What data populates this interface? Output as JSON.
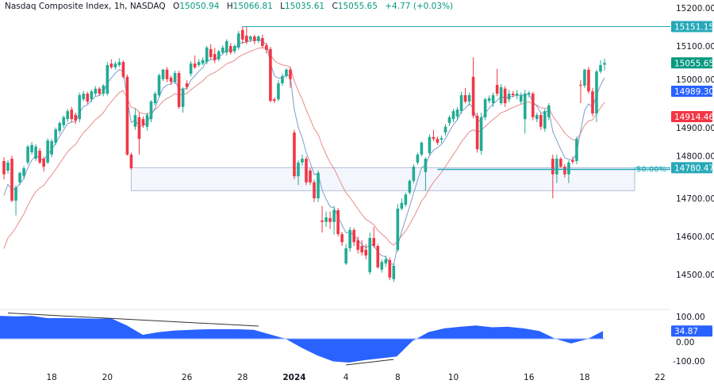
{
  "header": {
    "symbol": "Nasdaq Composite Index, 1h, NASDAQ",
    "open_label": "O",
    "open": "15050.94",
    "high_label": "H",
    "high": "15066.81",
    "low_label": "L",
    "low": "15035.61",
    "close_label": "C",
    "close": "15055.65",
    "change": "+4.77 (+0.03%)"
  },
  "colors": {
    "up": "#22ab94",
    "down": "#f23645",
    "fast_ma": "#7e9cc9",
    "slow_ma": "#e58c8c",
    "level": "#26a8b8",
    "oscillator": "#2962ff",
    "zone_fill": "#f3f6fd",
    "zone_border": "#b2bed4"
  },
  "chart_data": [
    {
      "type": "candlestick",
      "title": "Nasdaq Composite Index, 1h, NASDAQ",
      "ylim": [
        14450,
        15220
      ],
      "price_ticks": [
        "15200.00",
        "15100.00",
        "15000.00",
        "14900.00",
        "14800.00",
        "14700.00",
        "14600.00",
        "14500.00"
      ],
      "time_ticks": [
        {
          "label": "18",
          "bar": 12
        },
        {
          "label": "20",
          "bar": 26
        },
        {
          "label": "26",
          "bar": 46
        },
        {
          "label": "28",
          "bar": 60
        },
        {
          "label": "2024",
          "bar": 73,
          "bold": true
        },
        {
          "label": "4",
          "bar": 86
        },
        {
          "label": "8",
          "bar": 99
        },
        {
          "label": "10",
          "bar": 113
        },
        {
          "label": "16",
          "bar": 132
        },
        {
          "label": "18",
          "bar": 146
        },
        {
          "label": "22",
          "bar": 165
        }
      ],
      "ohlc": [
        [
          14798,
          14808,
          14750,
          14763
        ],
        [
          14773,
          14800,
          14765,
          14794
        ],
        [
          14804,
          14812,
          14690,
          14694
        ],
        [
          14694,
          14735,
          14655,
          14729
        ],
        [
          14742,
          14770,
          14735,
          14767
        ],
        [
          14759,
          14785,
          14750,
          14779
        ],
        [
          14794,
          14840,
          14788,
          14836
        ],
        [
          14821,
          14848,
          14815,
          14840
        ],
        [
          14804,
          14842,
          14798,
          14836
        ],
        [
          14825,
          14832,
          14790,
          14794
        ],
        [
          14804,
          14810,
          14770,
          14783
        ],
        [
          14794,
          14858,
          14790,
          14852
        ],
        [
          14815,
          14856,
          14808,
          14850
        ],
        [
          14846,
          14886,
          14840,
          14881
        ],
        [
          14877,
          14902,
          14870,
          14898
        ],
        [
          14892,
          14918,
          14885,
          14913
        ],
        [
          14908,
          14935,
          14900,
          14929
        ],
        [
          14933,
          14940,
          14900,
          14908
        ],
        [
          14919,
          14925,
          14895,
          14904
        ],
        [
          14908,
          14978,
          14900,
          14971
        ],
        [
          14960,
          14982,
          14955,
          14975
        ],
        [
          14975,
          14980,
          14948,
          14954
        ],
        [
          14960,
          14986,
          14952,
          14981
        ],
        [
          14975,
          14995,
          14968,
          14988
        ],
        [
          14988,
          14992,
          14970,
          14975
        ],
        [
          14975,
          15000,
          14968,
          14996
        ],
        [
          14975,
          15058,
          14970,
          15050
        ],
        [
          15054,
          15065,
          15040,
          15044
        ],
        [
          15044,
          15060,
          15038,
          15054
        ],
        [
          15050,
          15068,
          15045,
          15058
        ],
        [
          15058,
          15062,
          15015,
          15019
        ],
        [
          15019,
          15025,
          14812,
          14815
        ],
        [
          14815,
          14820,
          14775,
          14779
        ],
        [
          14888,
          14935,
          14880,
          14919
        ],
        [
          14913,
          14925,
          14815,
          14856
        ],
        [
          14908,
          14915,
          14885,
          14892
        ],
        [
          14888,
          14925,
          14878,
          14919
        ],
        [
          14908,
          14958,
          14900,
          14954
        ],
        [
          14950,
          14980,
          14945,
          14975
        ],
        [
          14971,
          15028,
          14965,
          15023
        ],
        [
          15013,
          15040,
          15008,
          15038
        ],
        [
          15038,
          15045,
          15005,
          15013
        ],
        [
          15017,
          15022,
          14998,
          15006
        ],
        [
          15006,
          15035,
          15000,
          15029
        ],
        [
          15029,
          15035,
          14935,
          14940
        ],
        [
          14940,
          14992,
          14925,
          14988
        ],
        [
          15002,
          15010,
          14985,
          14992
        ],
        [
          15027,
          15060,
          15020,
          15054
        ],
        [
          15054,
          15075,
          15040,
          15044
        ],
        [
          15050,
          15065,
          15045,
          15058
        ],
        [
          15054,
          15070,
          15050,
          15063
        ],
        [
          15058,
          15100,
          15052,
          15096
        ],
        [
          15092,
          15105,
          15065,
          15071
        ],
        [
          15079,
          15095,
          15055,
          15063
        ],
        [
          15065,
          15090,
          15060,
          15086
        ],
        [
          15083,
          15102,
          15078,
          15096
        ],
        [
          15083,
          15118,
          15075,
          15113
        ],
        [
          15100,
          15108,
          15078,
          15083
        ],
        [
          15086,
          15104,
          15080,
          15100
        ],
        [
          15096,
          15140,
          15090,
          15133
        ],
        [
          15142,
          15152,
          15105,
          15117
        ],
        [
          15127,
          15150,
          15105,
          15111
        ],
        [
          15117,
          15128,
          15110,
          15125
        ],
        [
          15125,
          15130,
          15105,
          15113
        ],
        [
          15113,
          15128,
          15108,
          15125
        ],
        [
          15121,
          15130,
          15095,
          15100
        ],
        [
          15102,
          15108,
          15080,
          15090
        ],
        [
          15092,
          15098,
          14952,
          14956
        ],
        [
          14960,
          14965,
          14950,
          14956
        ],
        [
          14960,
          15010,
          14955,
          15002
        ],
        [
          15002,
          15028,
          14995,
          15021
        ],
        [
          15021,
          15042,
          15015,
          15038
        ],
        [
          15038,
          15045,
          14990,
          15013
        ],
        [
          14873,
          14880,
          14750,
          14758
        ],
        [
          14758,
          14800,
          14735,
          14794
        ],
        [
          14794,
          14815,
          14785,
          14804
        ],
        [
          14804,
          14810,
          14735,
          14742
        ],
        [
          14773,
          14780,
          14735,
          14742
        ],
        [
          14742,
          14748,
          14690,
          14700
        ],
        [
          14700,
          14773,
          14690,
          14767
        ],
        [
          14642,
          14680,
          14610,
          14638
        ],
        [
          14638,
          14665,
          14625,
          14650
        ],
        [
          14648,
          14665,
          14620,
          14638
        ],
        [
          14638,
          14680,
          14605,
          14669
        ],
        [
          14669,
          14675,
          14600,
          14606
        ],
        [
          14606,
          14612,
          14575,
          14585
        ],
        [
          14529,
          14580,
          14525,
          14569
        ],
        [
          14569,
          14625,
          14560,
          14617
        ],
        [
          14617,
          14622,
          14575,
          14585
        ],
        [
          14590,
          14600,
          14555,
          14565
        ],
        [
          14575,
          14590,
          14550,
          14558
        ],
        [
          14565,
          14580,
          14540,
          14550
        ],
        [
          14506,
          14610,
          14500,
          14596
        ],
        [
          14596,
          14625,
          14570,
          14575
        ],
        [
          14575,
          14580,
          14515,
          14519
        ],
        [
          14513,
          14540,
          14505,
          14533
        ],
        [
          14529,
          14550,
          14520,
          14540
        ],
        [
          14538,
          14545,
          14485,
          14492
        ],
        [
          14488,
          14530,
          14480,
          14523
        ],
        [
          14565,
          14685,
          14560,
          14673
        ],
        [
          14673,
          14700,
          14668,
          14688
        ],
        [
          14683,
          14715,
          14678,
          14710
        ],
        [
          14715,
          14750,
          14710,
          14746
        ],
        [
          14746,
          14790,
          14740,
          14783
        ],
        [
          14794,
          14820,
          14788,
          14815
        ],
        [
          14815,
          14850,
          14810,
          14846
        ],
        [
          14769,
          14808,
          14720,
          14804
        ],
        [
          14819,
          14868,
          14812,
          14861
        ],
        [
          14861,
          14880,
          14850,
          14856
        ],
        [
          14856,
          14862,
          14840,
          14846
        ],
        [
          14854,
          14865,
          14845,
          14858
        ],
        [
          14873,
          14895,
          14865,
          14888
        ],
        [
          14898,
          14918,
          14890,
          14913
        ],
        [
          14908,
          14935,
          14900,
          14929
        ],
        [
          14915,
          14940,
          14905,
          14933
        ],
        [
          14929,
          14980,
          14922,
          14971
        ],
        [
          14971,
          14990,
          14950,
          14954
        ],
        [
          14954,
          14978,
          14945,
          14971
        ],
        [
          15019,
          15070,
          14910,
          14917
        ],
        [
          14917,
          14925,
          14820,
          14829
        ],
        [
          14825,
          14925,
          14815,
          14913
        ],
        [
          14913,
          14965,
          14905,
          14960
        ],
        [
          14956,
          14970,
          14950,
          14963
        ],
        [
          14950,
          14978,
          14940,
          14971
        ],
        [
          14998,
          15040,
          14968,
          14975
        ],
        [
          14950,
          15000,
          14945,
          14992
        ],
        [
          14988,
          14995,
          14940,
          14950
        ],
        [
          14960,
          14985,
          14952,
          14975
        ],
        [
          14975,
          14982,
          14965,
          14971
        ],
        [
          14971,
          14985,
          14960,
          14975
        ],
        [
          14954,
          14978,
          14948,
          14971
        ],
        [
          14908,
          14985,
          14870,
          14975
        ],
        [
          14973,
          14982,
          14965,
          14977
        ],
        [
          14975,
          14980,
          14905,
          14913
        ],
        [
          14908,
          14925,
          14900,
          14919
        ],
        [
          14919,
          14925,
          14880,
          14888
        ],
        [
          14883,
          14935,
          14875,
          14929
        ],
        [
          14913,
          14950,
          14905,
          14944
        ],
        [
          14804,
          14815,
          14700,
          14763
        ],
        [
          14763,
          14815,
          14740,
          14804
        ],
        [
          14804,
          14808,
          14780,
          14783
        ],
        [
          14783,
          14790,
          14755,
          14763
        ],
        [
          14763,
          14800,
          14740,
          14794
        ],
        [
          14800,
          14810,
          14790,
          14796
        ],
        [
          14798,
          14862,
          14790,
          14856
        ],
        [
          14998,
          15010,
          14950,
          14996
        ],
        [
          14996,
          15040,
          14990,
          15038
        ],
        [
          15038,
          15045,
          14975,
          14981
        ],
        [
          14981,
          14990,
          14915,
          14923
        ],
        [
          14923,
          15038,
          14900,
          15033
        ],
        [
          15033,
          15063,
          15028,
          15050
        ],
        [
          15050.94,
          15066.81,
          15035.61,
          15055.65
        ]
      ],
      "fast_ma_last": "14989.30",
      "slow_ma_last": "14914.46",
      "last_price": "15055.65",
      "resistance_level": {
        "price": 15151.15,
        "label": "15151.15",
        "from_bar": 60
      },
      "zone": {
        "top": 14780.47,
        "bottom": 14720,
        "label": "14780.47",
        "from_bar": 32
      },
      "fib_line": {
        "price": 14776,
        "label": "50.00%",
        "from_bar": 109
      }
    },
    {
      "type": "area",
      "ylim": [
        -130,
        130
      ],
      "ticks": [
        "100.00",
        "0.00",
        "-100.00"
      ],
      "values": [
        103,
        101,
        103,
        93,
        93,
        92,
        90,
        92,
        60,
        18,
        30,
        37,
        40,
        43,
        43,
        43,
        40,
        20,
        0,
        -40,
        -75,
        -102,
        -107,
        -96,
        -88,
        -80,
        -10,
        30,
        47,
        54,
        60,
        52,
        54,
        47,
        35,
        0,
        -21,
        -2,
        34.87
      ],
      "last_label": "34.87",
      "trendlines": [
        {
          "from_bar": 1,
          "from_value": 116,
          "to_bar": 64,
          "to_value": 57
        },
        {
          "from_bar": 86,
          "from_value": -118,
          "to_bar": 98,
          "to_value": -93
        }
      ]
    }
  ]
}
